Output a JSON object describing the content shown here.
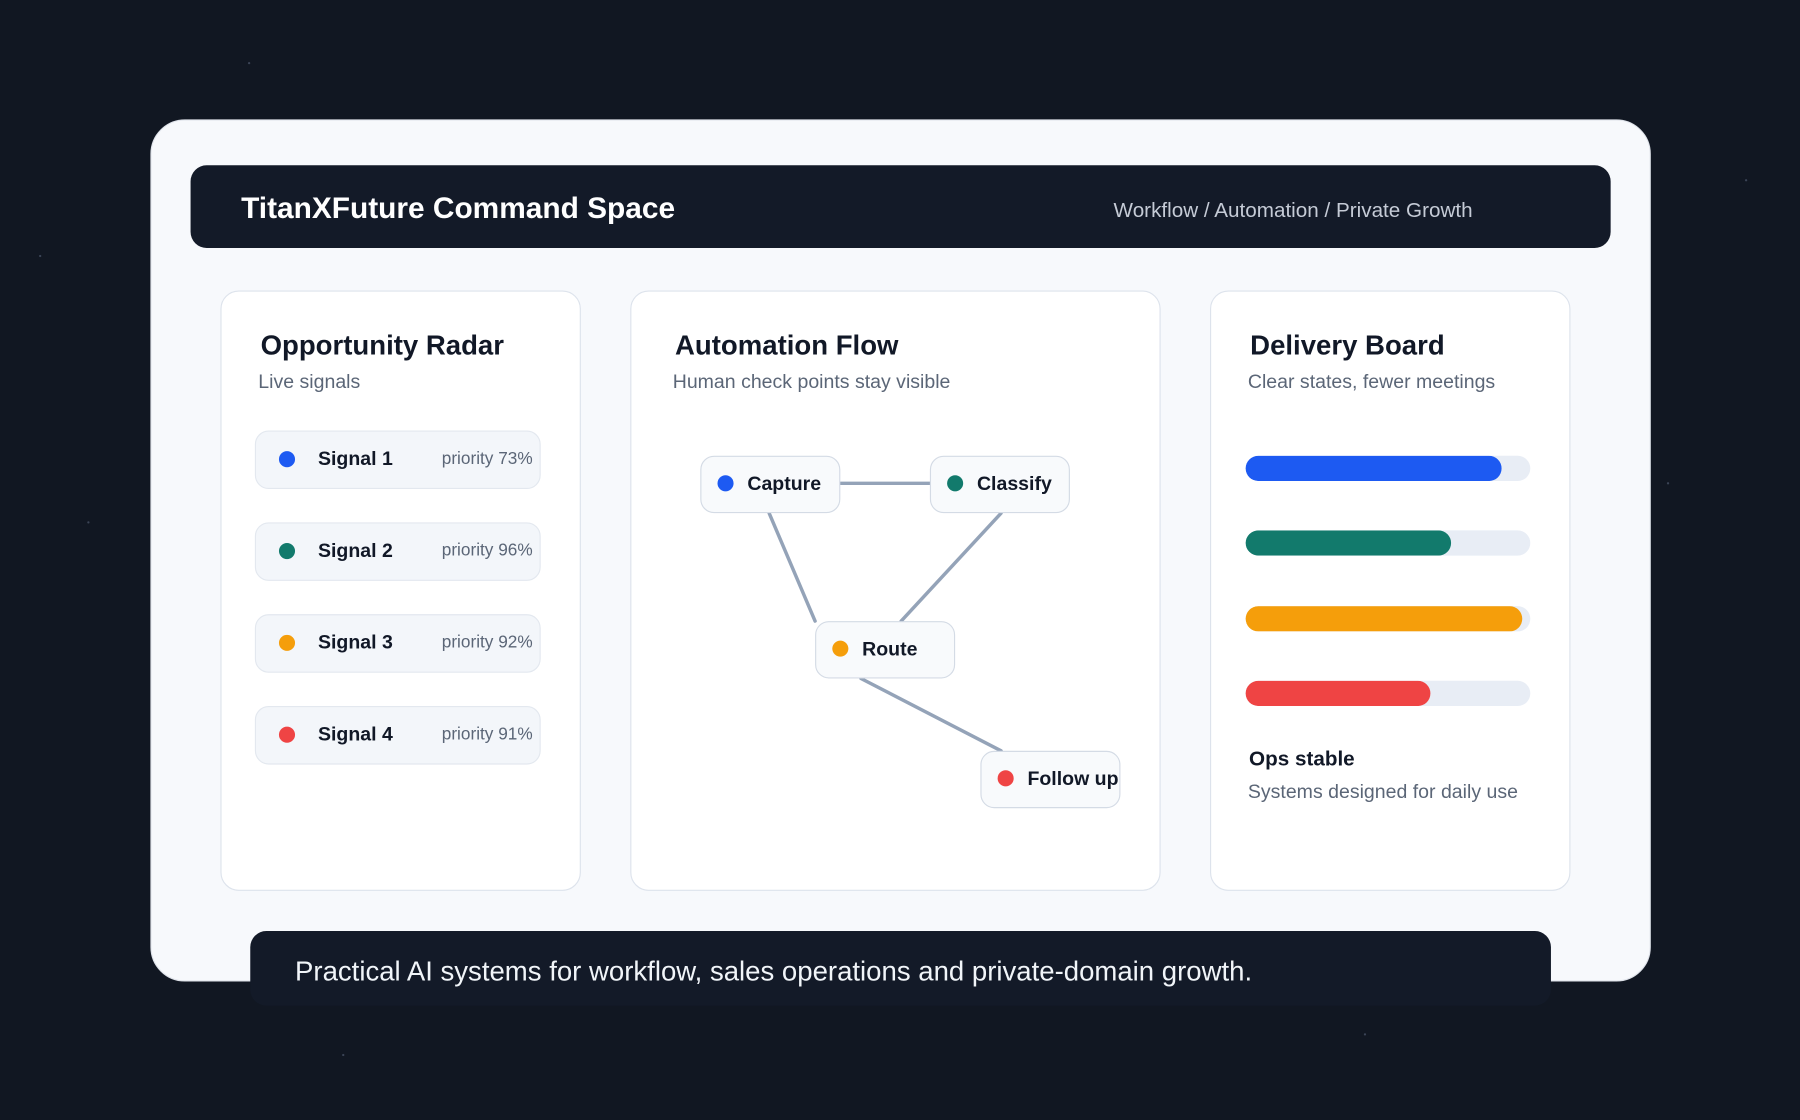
{
  "header": {
    "title": "TitanXFuture Command Space",
    "subtitle": "Workflow / Automation / Private Growth"
  },
  "radar": {
    "title": "Opportunity Radar",
    "subtitle": "Live signals",
    "signals": [
      {
        "label": "Signal 1",
        "priority": "priority 73%",
        "color": "#1d5af2"
      },
      {
        "label": "Signal 2",
        "priority": "priority 96%",
        "color": "#127a6c"
      },
      {
        "label": "Signal 3",
        "priority": "priority 92%",
        "color": "#f59e0b"
      },
      {
        "label": "Signal 4",
        "priority": "priority 91%",
        "color": "#ef4444"
      }
    ]
  },
  "flow": {
    "title": "Automation Flow",
    "subtitle": "Human check points stay visible",
    "nodes": [
      {
        "label": "Capture",
        "color": "#1d5af2"
      },
      {
        "label": "Classify",
        "color": "#127a6c"
      },
      {
        "label": "Route",
        "color": "#f59e0b"
      },
      {
        "label": "Follow up",
        "color": "#ef4444"
      }
    ]
  },
  "delivery": {
    "title": "Delivery Board",
    "subtitle": "Clear states, fewer meetings",
    "range": [
      0,
      100
    ],
    "bars": [
      {
        "value": 90,
        "color": "#1d5af2"
      },
      {
        "value": 72,
        "color": "#127a6c"
      },
      {
        "value": 97,
        "color": "#f59e0b"
      },
      {
        "value": 65,
        "color": "#ef4444"
      }
    ],
    "status": "Ops stable",
    "status_note": "Systems designed for daily use"
  },
  "footer": {
    "text": "Practical AI systems for workflow, sales operations and private-domain growth."
  }
}
